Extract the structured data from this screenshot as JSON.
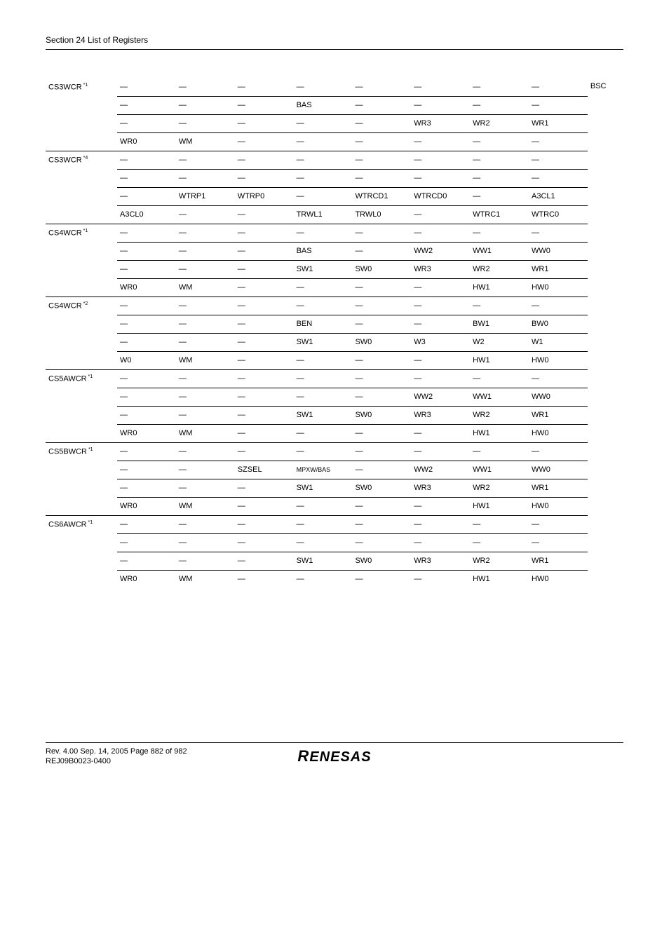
{
  "header": {
    "section_title": "Section 24   List of Registers"
  },
  "module": "BSC",
  "dash": "—",
  "registers": [
    {
      "name": "CS3WCR",
      "note": "*1",
      "rows": [
        [
          "—",
          "—",
          "—",
          "—",
          "—",
          "—",
          "—",
          "—"
        ],
        [
          "—",
          "—",
          "—",
          "BAS",
          "—",
          "—",
          "—",
          "—"
        ],
        [
          "—",
          "—",
          "—",
          "—",
          "—",
          "WR3",
          "WR2",
          "WR1"
        ],
        [
          "WR0",
          "WM",
          "—",
          "—",
          "—",
          "—",
          "—",
          "—"
        ]
      ]
    },
    {
      "name": "CS3WCR",
      "note": "*4",
      "rows": [
        [
          "—",
          "—",
          "—",
          "—",
          "—",
          "—",
          "—",
          "—"
        ],
        [
          "—",
          "—",
          "—",
          "—",
          "—",
          "—",
          "—",
          "—"
        ],
        [
          "—",
          "WTRP1",
          "WTRP0",
          "—",
          "WTRCD1",
          "WTRCD0",
          "—",
          "A3CL1"
        ],
        [
          "A3CL0",
          "—",
          "—",
          "TRWL1",
          "TRWL0",
          "—",
          "WTRC1",
          "WTRC0"
        ]
      ]
    },
    {
      "name": "CS4WCR",
      "note": "*1",
      "rows": [
        [
          "—",
          "—",
          "—",
          "—",
          "—",
          "—",
          "—",
          "—"
        ],
        [
          "—",
          "—",
          "—",
          "BAS",
          "—",
          "WW2",
          "WW1",
          "WW0"
        ],
        [
          "—",
          "—",
          "—",
          "SW1",
          "SW0",
          "WR3",
          "WR2",
          "WR1"
        ],
        [
          "WR0",
          "WM",
          "—",
          "—",
          "—",
          "—",
          "HW1",
          "HW0"
        ]
      ]
    },
    {
      "name": "CS4WCR",
      "note": "*2",
      "rows": [
        [
          "—",
          "—",
          "—",
          "—",
          "—",
          "—",
          "—",
          "—"
        ],
        [
          "—",
          "—",
          "—",
          "BEN",
          "—",
          "—",
          "BW1",
          "BW0"
        ],
        [
          "—",
          "—",
          "—",
          "SW1",
          "SW0",
          "W3",
          "W2",
          "W1"
        ],
        [
          "W0",
          "WM",
          "—",
          "—",
          "—",
          "—",
          "HW1",
          "HW0"
        ]
      ]
    },
    {
      "name": "CS5AWCR",
      "note": "*1",
      "rows": [
        [
          "—",
          "—",
          "—",
          "—",
          "—",
          "—",
          "—",
          "—"
        ],
        [
          "—",
          "—",
          "—",
          "—",
          "—",
          "WW2",
          "WW1",
          "WW0"
        ],
        [
          "—",
          "—",
          "—",
          "SW1",
          "SW0",
          "WR3",
          "WR2",
          "WR1"
        ],
        [
          "WR0",
          "WM",
          "—",
          "—",
          "—",
          "—",
          "HW1",
          "HW0"
        ]
      ]
    },
    {
      "name": "CS5BWCR",
      "note": "*1",
      "rows": [
        [
          "—",
          "—",
          "—",
          "—",
          "—",
          "—",
          "—",
          "—"
        ],
        [
          "—",
          "—",
          "SZSEL",
          "MPXW/BAS",
          "—",
          "WW2",
          "WW1",
          "WW0"
        ],
        [
          "—",
          "—",
          "—",
          "SW1",
          "SW0",
          "WR3",
          "WR2",
          "WR1"
        ],
        [
          "WR0",
          "WM",
          "—",
          "—",
          "—",
          "—",
          "HW1",
          "HW0"
        ]
      ]
    },
    {
      "name": "CS6AWCR",
      "note": "*1",
      "rows": [
        [
          "—",
          "—",
          "—",
          "—",
          "—",
          "—",
          "—",
          "—"
        ],
        [
          "—",
          "—",
          "—",
          "—",
          "—",
          "—",
          "—",
          "—"
        ],
        [
          "—",
          "—",
          "—",
          "SW1",
          "SW0",
          "WR3",
          "WR2",
          "WR1"
        ],
        [
          "WR0",
          "WM",
          "—",
          "—",
          "—",
          "—",
          "HW1",
          "HW0"
        ]
      ]
    }
  ],
  "footer": {
    "line1": "Rev. 4.00  Sep. 14, 2005  Page 882 of 982",
    "line2": "REJ09B0023-0400",
    "logo": "RENESAS"
  }
}
